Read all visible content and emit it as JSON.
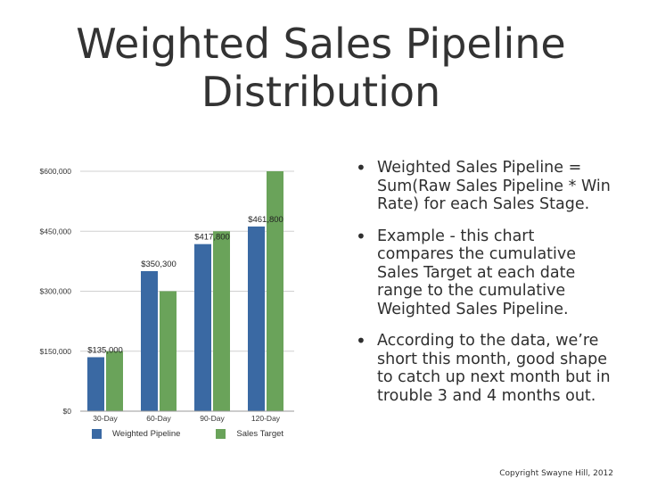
{
  "slide": {
    "title_line1": "Weighted Sales Pipeline",
    "title_line2": "Distribution",
    "bullets": [
      "Weighted Sales Pipeline = Sum(Raw Sales Pipeline * Win Rate) for each Sales Stage.",
      "Example - this chart compares the cumulative Sales Target at each date range to the cumulative Weighted Sales Pipeline.",
      "According to the data, we’re short this month, good shape to catch up next month but in trouble 3 and 4 months out."
    ],
    "copyright": "Copyright Swayne Hill, 2012"
  },
  "chart_data": {
    "type": "bar",
    "categories": [
      "30-Day",
      "60-Day",
      "90-Day",
      "120-Day"
    ],
    "series": [
      {
        "name": "Weighted Pipeline",
        "values": [
          135000,
          350300,
          417800,
          461800
        ],
        "color": "#3a69a3"
      },
      {
        "name": "Sales Target",
        "values": [
          150000,
          300000,
          450000,
          600000
        ],
        "color": "#6aa35a"
      }
    ],
    "data_labels": [
      "$135,000",
      "$350,300",
      "$417,800",
      "$461,800"
    ],
    "y_ticks": [
      0,
      150000,
      300000,
      450000,
      600000
    ],
    "y_tick_labels": [
      "$0",
      "$150,000",
      "$300,000",
      "$450,000",
      "$600,000"
    ],
    "ylim": [
      0,
      600000
    ],
    "grid": true,
    "legend_position": "bottom"
  }
}
